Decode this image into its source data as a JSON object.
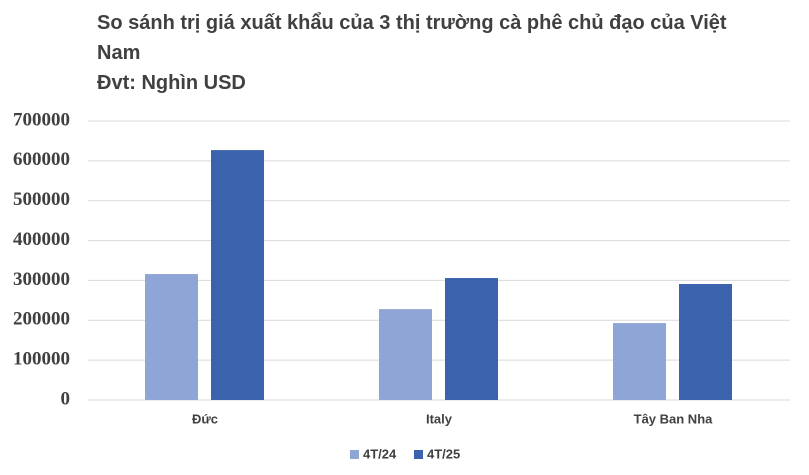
{
  "chart_data": {
    "type": "bar",
    "title": "So sánh trị giá xuất khẩu của 3 thị trường cà phê chủ đạo của Việt Nam",
    "subtitle": "Đvt: Nghìn USD",
    "categories": [
      "Đức",
      "Italy",
      "Tây Ban Nha"
    ],
    "series": [
      {
        "name": "4T/24",
        "color": "#8fa5d6",
        "values": [
          316000,
          228000,
          193000
        ]
      },
      {
        "name": "4T/25",
        "color": "#3b62ad",
        "values": [
          627000,
          306000,
          291000
        ]
      }
    ],
    "ylim": [
      0,
      700000
    ],
    "yticks": [
      0,
      100000,
      200000,
      300000,
      400000,
      500000,
      600000,
      700000
    ],
    "grid": true,
    "legend": "bottom"
  }
}
